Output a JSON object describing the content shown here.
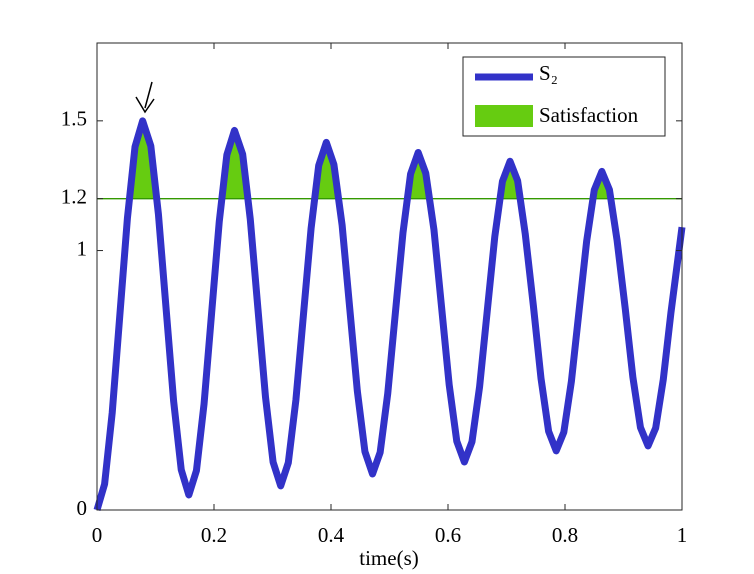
{
  "chart_data": {
    "type": "line",
    "xlabel": "time(s)",
    "x": [
      0,
      0.013,
      0.026,
      0.039,
      0.052,
      0.065,
      0.078,
      0.092,
      0.105,
      0.118,
      0.131,
      0.144,
      0.157,
      0.17,
      0.183,
      0.196,
      0.209,
      0.222,
      0.235,
      0.249,
      0.262,
      0.275,
      0.288,
      0.301,
      0.314,
      0.327,
      0.34,
      0.353,
      0.366,
      0.379,
      0.392,
      0.405,
      0.419,
      0.432,
      0.445,
      0.458,
      0.471,
      0.484,
      0.497,
      0.51,
      0.523,
      0.536,
      0.549,
      0.562,
      0.576,
      0.589,
      0.602,
      0.615,
      0.628,
      0.641,
      0.654,
      0.667,
      0.68,
      0.693,
      0.706,
      0.719,
      0.732,
      0.746,
      0.759,
      0.772,
      0.785,
      0.798,
      0.811,
      0.824,
      0.837,
      0.85,
      0.863,
      0.876,
      0.889,
      0.903,
      0.916,
      0.929,
      0.942,
      0.955,
      0.968,
      0.981,
      1.0
    ],
    "series": [
      {
        "name": "S₂",
        "color": "#3232c8",
        "values": [
          0,
          0.1,
          0.375,
          0.75,
          1.125,
          1.4,
          1.5,
          1.403,
          1.14,
          0.779,
          0.419,
          0.155,
          0.058,
          0.152,
          0.409,
          0.761,
          1.112,
          1.369,
          1.463,
          1.371,
          1.121,
          0.778,
          0.436,
          0.185,
          0.093,
          0.182,
          0.424,
          0.755,
          1.086,
          1.328,
          1.417,
          1.331,
          1.098,
          0.778,
          0.459,
          0.225,
          0.139,
          0.222,
          0.449,
          0.759,
          1.068,
          1.295,
          1.378,
          1.298,
          1.08,
          0.782,
          0.483,
          0.265,
          0.185,
          0.263,
          0.475,
          0.765,
          1.054,
          1.266,
          1.344,
          1.269,
          1.065,
          0.786,
          0.507,
          0.303,
          0.228,
          0.3,
          0.497,
          0.767,
          1.036,
          1.233,
          1.305,
          1.234,
          1.04,
          0.776,
          0.512,
          0.318,
          0.247,
          0.316,
          0.503,
          0.759,
          1.09
        ]
      }
    ],
    "fill": {
      "name": "Satisfaction",
      "color": "#66cc11",
      "threshold": 1.2,
      "line_color": "#339900"
    },
    "xlim": [
      0,
      1
    ],
    "xticks": [
      0,
      0.2,
      0.4,
      0.6,
      0.8,
      1
    ],
    "ylim": [
      0,
      1.8
    ],
    "yticks": [
      0,
      1,
      1.2,
      1.5
    ],
    "legend": "upper right"
  }
}
